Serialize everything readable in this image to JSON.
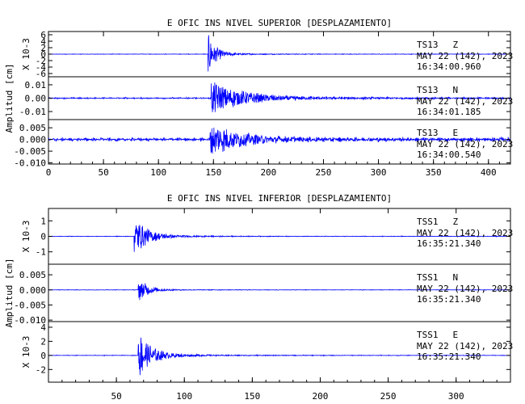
{
  "chart_data": [
    {
      "type": "line",
      "title": "E OFIC INS NIVEL SUPERIOR [DESPLAZAMIENTO]",
      "ylabel": "Amplitud [cm]",
      "xlim": [
        0,
        420
      ],
      "x_ticks": [
        "0",
        "50",
        "100",
        "150",
        "200",
        "250",
        "300",
        "350",
        "400"
      ],
      "line_color": "#0000ff",
      "traces": [
        {
          "station": "TS13",
          "component": "Z",
          "date": "MAY 22 (142), 2023",
          "time": "16:34:00.960",
          "scale_label": "X 10-3",
          "y_ticks": [
            "6",
            "4",
            "2",
            "0",
            "-2",
            "-4",
            "-6"
          ],
          "ylim": [
            -7,
            7
          ],
          "onset": 145,
          "peak": 6.5,
          "noise": 0.1,
          "decay": 7,
          "coda": 0.05
        },
        {
          "station": "TS13",
          "component": "N",
          "date": "MAY 22 (142), 2023",
          "time": "16:34:01.185",
          "scale_label": "",
          "y_ticks": [
            "0.01",
            "0.00",
            "-0.01"
          ],
          "ylim": [
            -0.016,
            0.016
          ],
          "onset": 148,
          "peak": 0.013,
          "noise": 0.0007,
          "decay": 28,
          "coda": 0.05
        },
        {
          "station": "TS13",
          "component": "E",
          "date": "MAY 22 (142), 2023",
          "time": "16:34:00.540",
          "scale_label": "",
          "y_ticks": [
            "0.005",
            "0.000",
            "-0.005",
            "-0.010"
          ],
          "ylim": [
            -0.0105,
            0.0085
          ],
          "onset": 147,
          "peak": 0.007,
          "noise": 0.0009,
          "decay": 25,
          "coda": 0.08
        }
      ]
    },
    {
      "type": "line",
      "title": "E OFIC INS NIVEL INFERIOR [DESPLAZAMIENTO]",
      "ylabel": "Amplitud [cm]",
      "xlim": [
        0,
        340
      ],
      "x_ticks": [
        "50",
        "100",
        "150",
        "200",
        "250",
        "300"
      ],
      "line_color": "#0000ff",
      "traces": [
        {
          "station": "TSS1",
          "component": "Z",
          "date": "MAY 22 (142), 2023",
          "time": "16:35:21.340",
          "scale_label": "X 10-3",
          "y_ticks": [
            "1",
            "0",
            "-1"
          ],
          "ylim": [
            -1.8,
            1.8
          ],
          "onset": 63,
          "peak": 1.3,
          "noise": 0.02,
          "decay": 10,
          "coda": 0.04
        },
        {
          "station": "TSS1",
          "component": "N",
          "date": "MAY 22 (142), 2023",
          "time": "16:35:21.340",
          "scale_label": "",
          "y_ticks": [
            "0.005",
            "0.000",
            "-0.005",
            "-0.010"
          ],
          "ylim": [
            -0.0105,
            0.0085
          ],
          "onset": 66,
          "peak": 0.0045,
          "noise": 0.0001,
          "decay": 7,
          "coda": 0.03
        },
        {
          "station": "TSS1",
          "component": "E",
          "date": "MAY 22 (142), 2023",
          "time": "16:35:21.340",
          "scale_label": "X 10-3",
          "y_ticks": [
            "4",
            "2",
            "0",
            "-2"
          ],
          "ylim": [
            -3.8,
            4.8
          ],
          "onset": 66,
          "peak": 3.8,
          "noise": 0.05,
          "decay": 9,
          "coda": 0.05
        }
      ]
    }
  ]
}
